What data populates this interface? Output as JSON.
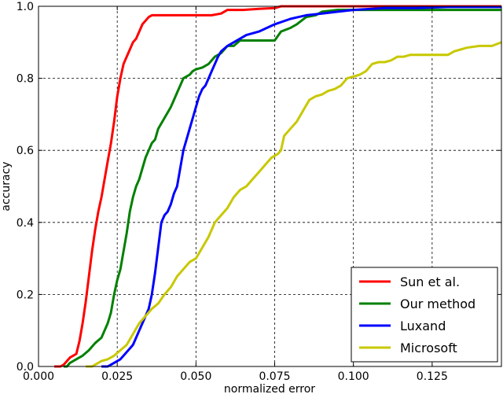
{
  "chart_data": {
    "type": "line",
    "title": "",
    "xlabel": "normalized error",
    "ylabel": "accuracy",
    "xlim": [
      0,
      0.147
    ],
    "ylim": [
      0,
      1.0
    ],
    "grid": true,
    "legend_position": "bottom-right",
    "xticks": [
      0,
      0.025,
      0.05,
      0.075,
      0.1,
      0.125
    ],
    "xtick_labels": [
      "0.000",
      "0.025",
      "0.050",
      "0.075",
      "0.100",
      "0.125"
    ],
    "yticks": [
      0,
      0.2,
      0.4,
      0.6,
      0.8,
      1.0
    ],
    "ytick_labels": [
      "0.0",
      "0.2",
      "0.4",
      "0.6",
      "0.8",
      "1.0"
    ],
    "series": [
      {
        "name": "Sun et al.",
        "color": "#ff0000",
        "points": [
          [
            0.005,
            0
          ],
          [
            0.007,
            0
          ],
          [
            0.008,
            0.005
          ],
          [
            0.009,
            0.015
          ],
          [
            0.01,
            0.025
          ],
          [
            0.011,
            0.03
          ],
          [
            0.012,
            0.035
          ],
          [
            0.013,
            0.07
          ],
          [
            0.014,
            0.12
          ],
          [
            0.015,
            0.18
          ],
          [
            0.016,
            0.25
          ],
          [
            0.017,
            0.32
          ],
          [
            0.018,
            0.38
          ],
          [
            0.019,
            0.43
          ],
          [
            0.02,
            0.47
          ],
          [
            0.021,
            0.52
          ],
          [
            0.022,
            0.57
          ],
          [
            0.023,
            0.62
          ],
          [
            0.024,
            0.68
          ],
          [
            0.025,
            0.75
          ],
          [
            0.026,
            0.8
          ],
          [
            0.027,
            0.84
          ],
          [
            0.028,
            0.86
          ],
          [
            0.029,
            0.88
          ],
          [
            0.03,
            0.9
          ],
          [
            0.031,
            0.91
          ],
          [
            0.032,
            0.93
          ],
          [
            0.033,
            0.95
          ],
          [
            0.034,
            0.96
          ],
          [
            0.035,
            0.97
          ],
          [
            0.036,
            0.975
          ],
          [
            0.038,
            0.975
          ],
          [
            0.04,
            0.975
          ],
          [
            0.045,
            0.975
          ],
          [
            0.05,
            0.975
          ],
          [
            0.055,
            0.975
          ],
          [
            0.058,
            0.98
          ],
          [
            0.06,
            0.99
          ],
          [
            0.065,
            0.99
          ],
          [
            0.07,
            0.993
          ],
          [
            0.075,
            0.995
          ],
          [
            0.077,
            1.0
          ],
          [
            0.147,
            1.0
          ]
        ]
      },
      {
        "name": "Our method",
        "color": "#008000",
        "points": [
          [
            0.008,
            0
          ],
          [
            0.009,
            0
          ],
          [
            0.01,
            0.01
          ],
          [
            0.012,
            0.02
          ],
          [
            0.014,
            0.03
          ],
          [
            0.016,
            0.045
          ],
          [
            0.018,
            0.065
          ],
          [
            0.02,
            0.08
          ],
          [
            0.021,
            0.1
          ],
          [
            0.022,
            0.12
          ],
          [
            0.023,
            0.15
          ],
          [
            0.024,
            0.2
          ],
          [
            0.025,
            0.24
          ],
          [
            0.026,
            0.27
          ],
          [
            0.027,
            0.32
          ],
          [
            0.028,
            0.37
          ],
          [
            0.029,
            0.43
          ],
          [
            0.03,
            0.47
          ],
          [
            0.031,
            0.5
          ],
          [
            0.032,
            0.52
          ],
          [
            0.033,
            0.55
          ],
          [
            0.034,
            0.58
          ],
          [
            0.035,
            0.6
          ],
          [
            0.036,
            0.62
          ],
          [
            0.037,
            0.63
          ],
          [
            0.038,
            0.66
          ],
          [
            0.04,
            0.69
          ],
          [
            0.042,
            0.72
          ],
          [
            0.043,
            0.74
          ],
          [
            0.044,
            0.76
          ],
          [
            0.045,
            0.78
          ],
          [
            0.046,
            0.8
          ],
          [
            0.047,
            0.805
          ],
          [
            0.048,
            0.81
          ],
          [
            0.049,
            0.82
          ],
          [
            0.05,
            0.825
          ],
          [
            0.052,
            0.83
          ],
          [
            0.054,
            0.84
          ],
          [
            0.056,
            0.86
          ],
          [
            0.058,
            0.87
          ],
          [
            0.06,
            0.89
          ],
          [
            0.062,
            0.89
          ],
          [
            0.064,
            0.905
          ],
          [
            0.068,
            0.905
          ],
          [
            0.072,
            0.905
          ],
          [
            0.075,
            0.905
          ],
          [
            0.077,
            0.93
          ],
          [
            0.08,
            0.94
          ],
          [
            0.082,
            0.95
          ],
          [
            0.085,
            0.97
          ],
          [
            0.088,
            0.975
          ],
          [
            0.09,
            0.985
          ],
          [
            0.095,
            0.99
          ],
          [
            0.1,
            0.99
          ],
          [
            0.11,
            0.99
          ],
          [
            0.12,
            0.99
          ],
          [
            0.13,
            0.99
          ],
          [
            0.147,
            0.99
          ]
        ]
      },
      {
        "name": "Luxand",
        "color": "#0000ff",
        "points": [
          [
            0.02,
            0
          ],
          [
            0.022,
            0
          ],
          [
            0.024,
            0.01
          ],
          [
            0.026,
            0.02
          ],
          [
            0.027,
            0.03
          ],
          [
            0.028,
            0.04
          ],
          [
            0.029,
            0.05
          ],
          [
            0.03,
            0.06
          ],
          [
            0.031,
            0.08
          ],
          [
            0.032,
            0.1
          ],
          [
            0.033,
            0.12
          ],
          [
            0.034,
            0.14
          ],
          [
            0.035,
            0.16
          ],
          [
            0.036,
            0.2
          ],
          [
            0.037,
            0.26
          ],
          [
            0.038,
            0.33
          ],
          [
            0.039,
            0.4
          ],
          [
            0.04,
            0.42
          ],
          [
            0.041,
            0.43
          ],
          [
            0.042,
            0.45
          ],
          [
            0.043,
            0.48
          ],
          [
            0.044,
            0.5
          ],
          [
            0.045,
            0.55
          ],
          [
            0.046,
            0.6
          ],
          [
            0.047,
            0.63
          ],
          [
            0.048,
            0.66
          ],
          [
            0.049,
            0.69
          ],
          [
            0.05,
            0.72
          ],
          [
            0.051,
            0.75
          ],
          [
            0.052,
            0.77
          ],
          [
            0.053,
            0.78
          ],
          [
            0.054,
            0.8
          ],
          [
            0.055,
            0.82
          ],
          [
            0.056,
            0.84
          ],
          [
            0.057,
            0.86
          ],
          [
            0.058,
            0.875
          ],
          [
            0.06,
            0.89
          ],
          [
            0.062,
            0.9
          ],
          [
            0.064,
            0.91
          ],
          [
            0.066,
            0.92
          ],
          [
            0.07,
            0.93
          ],
          [
            0.075,
            0.95
          ],
          [
            0.08,
            0.965
          ],
          [
            0.085,
            0.975
          ],
          [
            0.09,
            0.98
          ],
          [
            0.095,
            0.985
          ],
          [
            0.1,
            0.99
          ],
          [
            0.11,
            0.995
          ],
          [
            0.12,
            0.995
          ],
          [
            0.13,
            0.998
          ],
          [
            0.147,
            0.998
          ]
        ]
      },
      {
        "name": "Microsoft",
        "color": "#c8c800",
        "points": [
          [
            0.015,
            0
          ],
          [
            0.017,
            0
          ],
          [
            0.018,
            0.005
          ],
          [
            0.019,
            0.01
          ],
          [
            0.02,
            0.015
          ],
          [
            0.022,
            0.02
          ],
          [
            0.024,
            0.03
          ],
          [
            0.026,
            0.045
          ],
          [
            0.028,
            0.06
          ],
          [
            0.03,
            0.09
          ],
          [
            0.032,
            0.12
          ],
          [
            0.034,
            0.14
          ],
          [
            0.036,
            0.16
          ],
          [
            0.038,
            0.175
          ],
          [
            0.04,
            0.2
          ],
          [
            0.042,
            0.22
          ],
          [
            0.044,
            0.25
          ],
          [
            0.046,
            0.27
          ],
          [
            0.048,
            0.29
          ],
          [
            0.05,
            0.3
          ],
          [
            0.052,
            0.33
          ],
          [
            0.054,
            0.36
          ],
          [
            0.056,
            0.4
          ],
          [
            0.058,
            0.42
          ],
          [
            0.06,
            0.44
          ],
          [
            0.062,
            0.47
          ],
          [
            0.064,
            0.49
          ],
          [
            0.066,
            0.5
          ],
          [
            0.068,
            0.52
          ],
          [
            0.07,
            0.54
          ],
          [
            0.072,
            0.56
          ],
          [
            0.074,
            0.58
          ],
          [
            0.076,
            0.59
          ],
          [
            0.077,
            0.6
          ],
          [
            0.078,
            0.64
          ],
          [
            0.08,
            0.66
          ],
          [
            0.082,
            0.68
          ],
          [
            0.084,
            0.71
          ],
          [
            0.086,
            0.74
          ],
          [
            0.088,
            0.75
          ],
          [
            0.09,
            0.755
          ],
          [
            0.092,
            0.765
          ],
          [
            0.094,
            0.77
          ],
          [
            0.096,
            0.78
          ],
          [
            0.098,
            0.8
          ],
          [
            0.1,
            0.805
          ],
          [
            0.102,
            0.81
          ],
          [
            0.104,
            0.82
          ],
          [
            0.106,
            0.84
          ],
          [
            0.108,
            0.845
          ],
          [
            0.11,
            0.845
          ],
          [
            0.112,
            0.85
          ],
          [
            0.114,
            0.86
          ],
          [
            0.116,
            0.86
          ],
          [
            0.118,
            0.865
          ],
          [
            0.12,
            0.865
          ],
          [
            0.125,
            0.865
          ],
          [
            0.13,
            0.865
          ],
          [
            0.132,
            0.875
          ],
          [
            0.134,
            0.88
          ],
          [
            0.136,
            0.885
          ],
          [
            0.14,
            0.89
          ],
          [
            0.144,
            0.89
          ],
          [
            0.147,
            0.9
          ]
        ]
      }
    ]
  }
}
